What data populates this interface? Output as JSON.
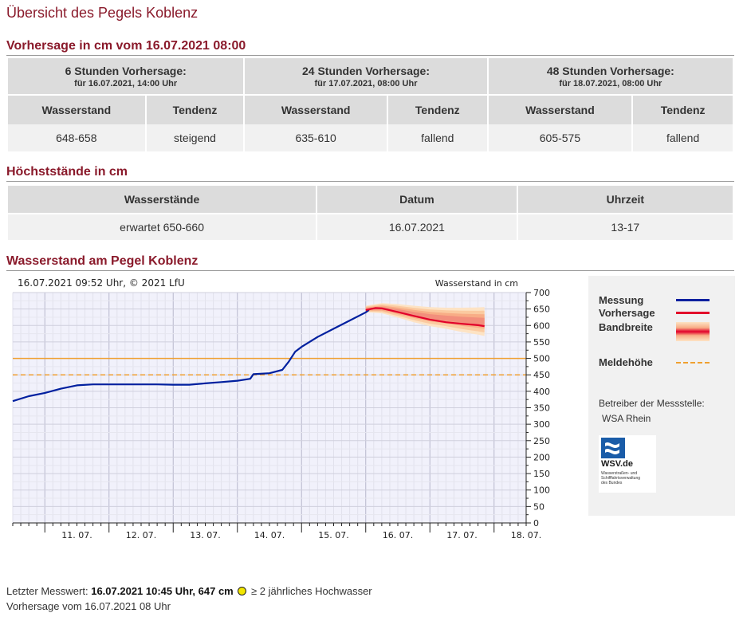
{
  "page_title": "Übersicht des Pegels Koblenz",
  "forecast_section": {
    "title": "Vorhersage in cm vom 16.07.2021 08:00",
    "columns": [
      {
        "heading": "6 Stunden Vorhersage:",
        "sub": "für 16.07.2021, 14:00 Uhr",
        "level_header": "Wasserstand",
        "trend_header": "Tendenz",
        "level": "648-658",
        "trend": "steigend"
      },
      {
        "heading": "24 Stunden Vorhersage:",
        "sub": "für 17.07.2021, 08:00 Uhr",
        "level_header": "Wasserstand",
        "trend_header": "Tendenz",
        "level": "635-610",
        "trend": "fallend"
      },
      {
        "heading": "48 Stunden Vorhersage:",
        "sub": "für 18.07.2021, 08:00 Uhr",
        "level_header": "Wasserstand",
        "trend_header": "Tendenz",
        "level": "605-575",
        "trend": "fallend"
      }
    ]
  },
  "peaks_section": {
    "title": "Höchststände in cm",
    "headers": [
      "Wasserstände",
      "Datum",
      "Uhrzeit"
    ],
    "row": [
      "erwartet 650-660",
      "16.07.2021",
      "13-17"
    ]
  },
  "chart_section": {
    "title": "Wasserstand am Pegel Koblenz"
  },
  "chart_data": {
    "type": "line",
    "title": "16.07.2021 09:52 Uhr, © 2021 LfU",
    "ylabel": "Wasserstand in cm",
    "ylim": [
      0,
      700
    ],
    "yticks": [
      0,
      50,
      100,
      150,
      200,
      250,
      300,
      350,
      400,
      450,
      500,
      550,
      600,
      650,
      700
    ],
    "x_range": [
      10.5,
      18.5
    ],
    "x_ticks": [
      {
        "x": 11.0,
        "label": "11. 07."
      },
      {
        "x": 12.0,
        "label": "12. 07."
      },
      {
        "x": 13.0,
        "label": "13. 07."
      },
      {
        "x": 14.0,
        "label": "14. 07."
      },
      {
        "x": 15.0,
        "label": "15. 07."
      },
      {
        "x": 16.0,
        "label": "16. 07."
      },
      {
        "x": 17.0,
        "label": "17. 07."
      },
      {
        "x": 18.0,
        "label": "18. 07."
      }
    ],
    "grid": true,
    "series": [
      {
        "name": "Messung",
        "color": "#00209f",
        "x": [
          10.5,
          10.75,
          11.0,
          11.25,
          11.5,
          11.75,
          12.0,
          12.25,
          12.5,
          12.75,
          13.0,
          13.25,
          13.5,
          13.75,
          14.0,
          14.2,
          14.25,
          14.5,
          14.7,
          14.8,
          14.9,
          15.0,
          15.25,
          15.5,
          15.75,
          16.0,
          16.05
        ],
        "y": [
          370,
          385,
          395,
          408,
          418,
          421,
          421,
          421,
          421,
          421,
          420,
          420,
          424,
          428,
          432,
          438,
          452,
          455,
          465,
          490,
          520,
          535,
          565,
          590,
          615,
          640,
          647
        ]
      },
      {
        "name": "Vorhersage",
        "color": "#e2002a",
        "x": [
          16.0,
          16.15,
          16.25,
          16.5,
          16.75,
          17.0,
          17.25,
          17.5,
          17.75,
          17.85
        ],
        "y": [
          647,
          653,
          652,
          641,
          629,
          618,
          610,
          605,
          601,
          598
        ]
      },
      {
        "name": "Bandbreite",
        "color": "#f5b27a",
        "x": [
          16.0,
          16.25,
          16.5,
          16.75,
          17.0,
          17.25,
          17.5,
          17.75,
          17.85
        ],
        "lower": [
          640,
          637,
          624,
          610,
          598,
          590,
          580,
          572,
          568
        ],
        "upper": [
          660,
          668,
          665,
          660,
          656,
          654,
          654,
          655,
          656
        ]
      }
    ],
    "reference_lines": [
      {
        "value": 500,
        "color": "#f0a030",
        "style": "solid"
      },
      {
        "name": "Meldehöhe",
        "value": 450,
        "color": "#f0a030",
        "style": "dashed"
      }
    ]
  },
  "legend": {
    "items": [
      {
        "label": "Messung",
        "color": "#00209f"
      },
      {
        "label": "Vorhersage",
        "color": "#e2002a"
      },
      {
        "label": "Bandbreite",
        "color": "#f5b27a"
      },
      {
        "label": "Meldehöhe",
        "color": "#f0a030"
      }
    ],
    "operator_label": "Betreiber der Messstelle:",
    "operator_name": "WSA Rhein",
    "logo_title": "WSV.de",
    "logo_lines": [
      "Wasserstraßen- und",
      "Schifffahrtsverwaltung",
      "des Bundes"
    ],
    "logo_color": "#1a5ca8"
  },
  "footer": {
    "last_label": "Letzter Messwert:",
    "last_value": "16.07.2021 10:45 Uhr, 647 cm",
    "flood_text": "≥ 2 jährliches Hochwasser",
    "forecast_note": "Vorhersage vom 16.07.2021 08 Uhr",
    "dot_color": "#f2e600"
  }
}
